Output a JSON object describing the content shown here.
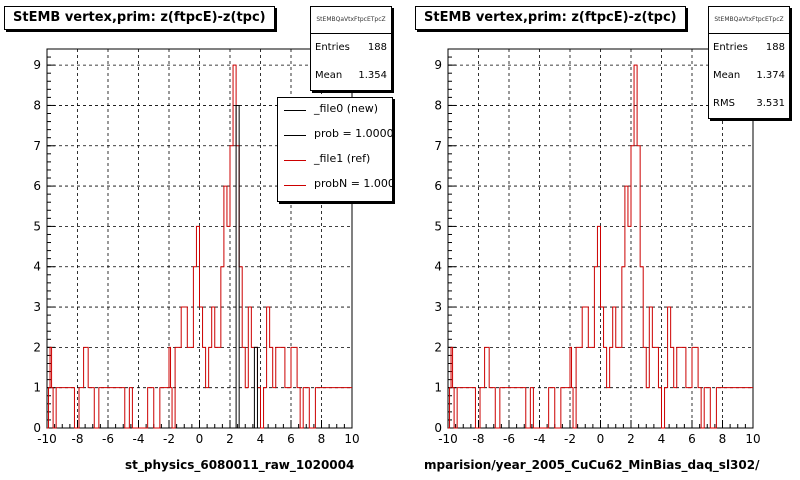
{
  "colors": {
    "new": "#000000",
    "ref": "#cc0000",
    "grid": "#000000"
  },
  "panels": [
    {
      "title": "StEMB  vertex,prim: z(ftpcE)-z(tpc)",
      "stats": {
        "name": "StEMBQaVtxFtpcETpcZ",
        "rows": [
          {
            "label": "Entries",
            "value": "188"
          },
          {
            "label": "Mean",
            "value": "1.354"
          }
        ]
      },
      "legend": [
        {
          "label": "_file0 (new)",
          "color": "#000000"
        },
        {
          "label": "prob = 1.000000",
          "color": "#000000"
        },
        {
          "label": "_file1 (ref)",
          "color": "#cc0000"
        },
        {
          "label": "probN = 1.000000",
          "color": "#cc0000"
        }
      ],
      "file_label": "st_physics_6080011_raw_1020004"
    },
    {
      "title": "StEMB  vertex,prim: z(ftpcE)-z(tpc)",
      "stats": {
        "name": "StEMBQaVtxFtpcETpcZ",
        "rows": [
          {
            "label": "Entries",
            "value": "188"
          },
          {
            "label": "Mean",
            "value": "1.374"
          },
          {
            "label": "RMS",
            "value": "3.531"
          }
        ]
      },
      "legend": [],
      "file_label": "mparision/year_2005_CuCu62_MinBias_daq_sl302/"
    }
  ],
  "chart_data": [
    {
      "type": "histogram",
      "title": "StEMB  vertex,prim: z(ftpcE)-z(tpc)",
      "xlim": [
        -10,
        10
      ],
      "ylim": [
        0,
        9.4
      ],
      "x_ticks": [
        -10,
        -8,
        -6,
        -4,
        -2,
        0,
        2,
        4,
        6,
        8,
        10
      ],
      "y_ticks": [
        0,
        1,
        2,
        3,
        4,
        5,
        6,
        7,
        8,
        9
      ],
      "grid": true,
      "series": [
        {
          "name": "_file1 (ref)",
          "color": "#cc0000",
          "bins": [
            [
              -9.9,
              1
            ],
            [
              -9.8,
              2
            ],
            [
              -9.7,
              1
            ],
            [
              -9.6,
              0
            ],
            [
              -9.4,
              1
            ],
            [
              -8.6,
              1
            ],
            [
              -8.4,
              1
            ],
            [
              -8.2,
              0
            ],
            [
              -7.9,
              1
            ],
            [
              -7.8,
              1
            ],
            [
              -7.6,
              2
            ],
            [
              -7.4,
              2
            ],
            [
              -7.3,
              1
            ],
            [
              -7.1,
              1
            ],
            [
              -6.9,
              0
            ],
            [
              -6.6,
              1
            ],
            [
              -5.1,
              1
            ],
            [
              -4.9,
              0
            ],
            [
              -4.6,
              1
            ],
            [
              -4.4,
              0
            ],
            [
              -3.4,
              1
            ],
            [
              -3.2,
              1
            ],
            [
              -3.0,
              0
            ],
            [
              -2.6,
              1
            ],
            [
              -2.0,
              2
            ],
            [
              -1.9,
              1
            ],
            [
              -1.8,
              0
            ],
            [
              -1.6,
              2
            ],
            [
              -1.4,
              2
            ],
            [
              -1.2,
              3
            ],
            [
              -1.0,
              3
            ],
            [
              -0.8,
              2
            ],
            [
              -0.4,
              4
            ],
            [
              -0.2,
              5
            ],
            [
              0.0,
              3
            ],
            [
              0.2,
              2
            ],
            [
              0.4,
              1
            ],
            [
              0.6,
              2
            ],
            [
              0.8,
              3
            ],
            [
              1.0,
              2
            ],
            [
              1.2,
              2
            ],
            [
              1.4,
              4
            ],
            [
              1.6,
              6
            ],
            [
              1.8,
              5
            ],
            [
              2.0,
              7
            ],
            [
              2.2,
              9
            ],
            [
              2.4,
              7
            ],
            [
              2.6,
              4
            ],
            [
              2.8,
              2
            ],
            [
              3.0,
              1
            ],
            [
              3.2,
              3
            ],
            [
              3.4,
              2
            ],
            [
              3.6,
              2
            ],
            [
              3.8,
              1
            ],
            [
              4.0,
              0
            ],
            [
              4.2,
              1
            ],
            [
              4.4,
              3
            ],
            [
              4.6,
              2
            ],
            [
              4.8,
              1
            ],
            [
              5.0,
              2
            ],
            [
              5.2,
              2
            ],
            [
              5.4,
              2
            ],
            [
              5.6,
              1
            ],
            [
              5.8,
              1
            ],
            [
              6.0,
              2
            ],
            [
              6.2,
              2
            ],
            [
              6.4,
              1
            ],
            [
              6.6,
              0
            ],
            [
              6.8,
              1
            ],
            [
              7.0,
              1
            ],
            [
              7.2,
              0
            ],
            [
              7.6,
              1
            ],
            [
              9.4,
              1
            ]
          ]
        },
        {
          "name": "_file0 (new)",
          "color": "#000000",
          "bins": [
            [
              2.4,
              8
            ],
            [
              3.6,
              2
            ]
          ]
        }
      ]
    },
    {
      "type": "histogram",
      "title": "StEMB  vertex,prim: z(ftpcE)-z(tpc)",
      "xlim": [
        -10,
        10
      ],
      "ylim": [
        0,
        9.4
      ],
      "x_ticks": [
        -10,
        -8,
        -6,
        -4,
        -2,
        0,
        2,
        4,
        6,
        8,
        10
      ],
      "y_ticks": [
        0,
        1,
        2,
        3,
        4,
        5,
        6,
        7,
        8,
        9
      ],
      "grid": true,
      "series": [
        {
          "name": "_file1 (ref)",
          "color": "#cc0000",
          "bins": [
            [
              -9.9,
              1
            ],
            [
              -9.8,
              2
            ],
            [
              -9.7,
              1
            ],
            [
              -9.6,
              0
            ],
            [
              -9.4,
              1
            ],
            [
              -8.6,
              1
            ],
            [
              -8.4,
              1
            ],
            [
              -8.2,
              0
            ],
            [
              -7.9,
              1
            ],
            [
              -7.8,
              1
            ],
            [
              -7.6,
              2
            ],
            [
              -7.4,
              2
            ],
            [
              -7.3,
              1
            ],
            [
              -7.1,
              1
            ],
            [
              -6.9,
              0
            ],
            [
              -6.6,
              1
            ],
            [
              -5.1,
              1
            ],
            [
              -4.9,
              0
            ],
            [
              -4.6,
              1
            ],
            [
              -4.4,
              0
            ],
            [
              -3.4,
              1
            ],
            [
              -3.2,
              1
            ],
            [
              -3.0,
              0
            ],
            [
              -2.6,
              1
            ],
            [
              -2.0,
              2
            ],
            [
              -1.9,
              1
            ],
            [
              -1.8,
              0
            ],
            [
              -1.6,
              2
            ],
            [
              -1.4,
              2
            ],
            [
              -1.2,
              3
            ],
            [
              -1.0,
              3
            ],
            [
              -0.8,
              2
            ],
            [
              -0.4,
              4
            ],
            [
              -0.2,
              5
            ],
            [
              0.0,
              3
            ],
            [
              0.2,
              2
            ],
            [
              0.4,
              1
            ],
            [
              0.6,
              2
            ],
            [
              0.8,
              3
            ],
            [
              1.0,
              2
            ],
            [
              1.2,
              2
            ],
            [
              1.4,
              4
            ],
            [
              1.6,
              6
            ],
            [
              1.8,
              5
            ],
            [
              2.0,
              7
            ],
            [
              2.2,
              9
            ],
            [
              2.4,
              7
            ],
            [
              2.6,
              4
            ],
            [
              2.8,
              2
            ],
            [
              3.0,
              1
            ],
            [
              3.2,
              3
            ],
            [
              3.4,
              2
            ],
            [
              3.6,
              2
            ],
            [
              3.8,
              1
            ],
            [
              4.0,
              0
            ],
            [
              4.2,
              1
            ],
            [
              4.4,
              3
            ],
            [
              4.6,
              2
            ],
            [
              4.8,
              1
            ],
            [
              5.0,
              2
            ],
            [
              5.2,
              2
            ],
            [
              5.4,
              2
            ],
            [
              5.6,
              1
            ],
            [
              5.8,
              1
            ],
            [
              6.0,
              2
            ],
            [
              6.2,
              2
            ],
            [
              6.4,
              1
            ],
            [
              6.6,
              0
            ],
            [
              6.8,
              1
            ],
            [
              7.0,
              1
            ],
            [
              7.2,
              0
            ],
            [
              7.6,
              1
            ],
            [
              9.4,
              1
            ]
          ]
        }
      ]
    }
  ]
}
